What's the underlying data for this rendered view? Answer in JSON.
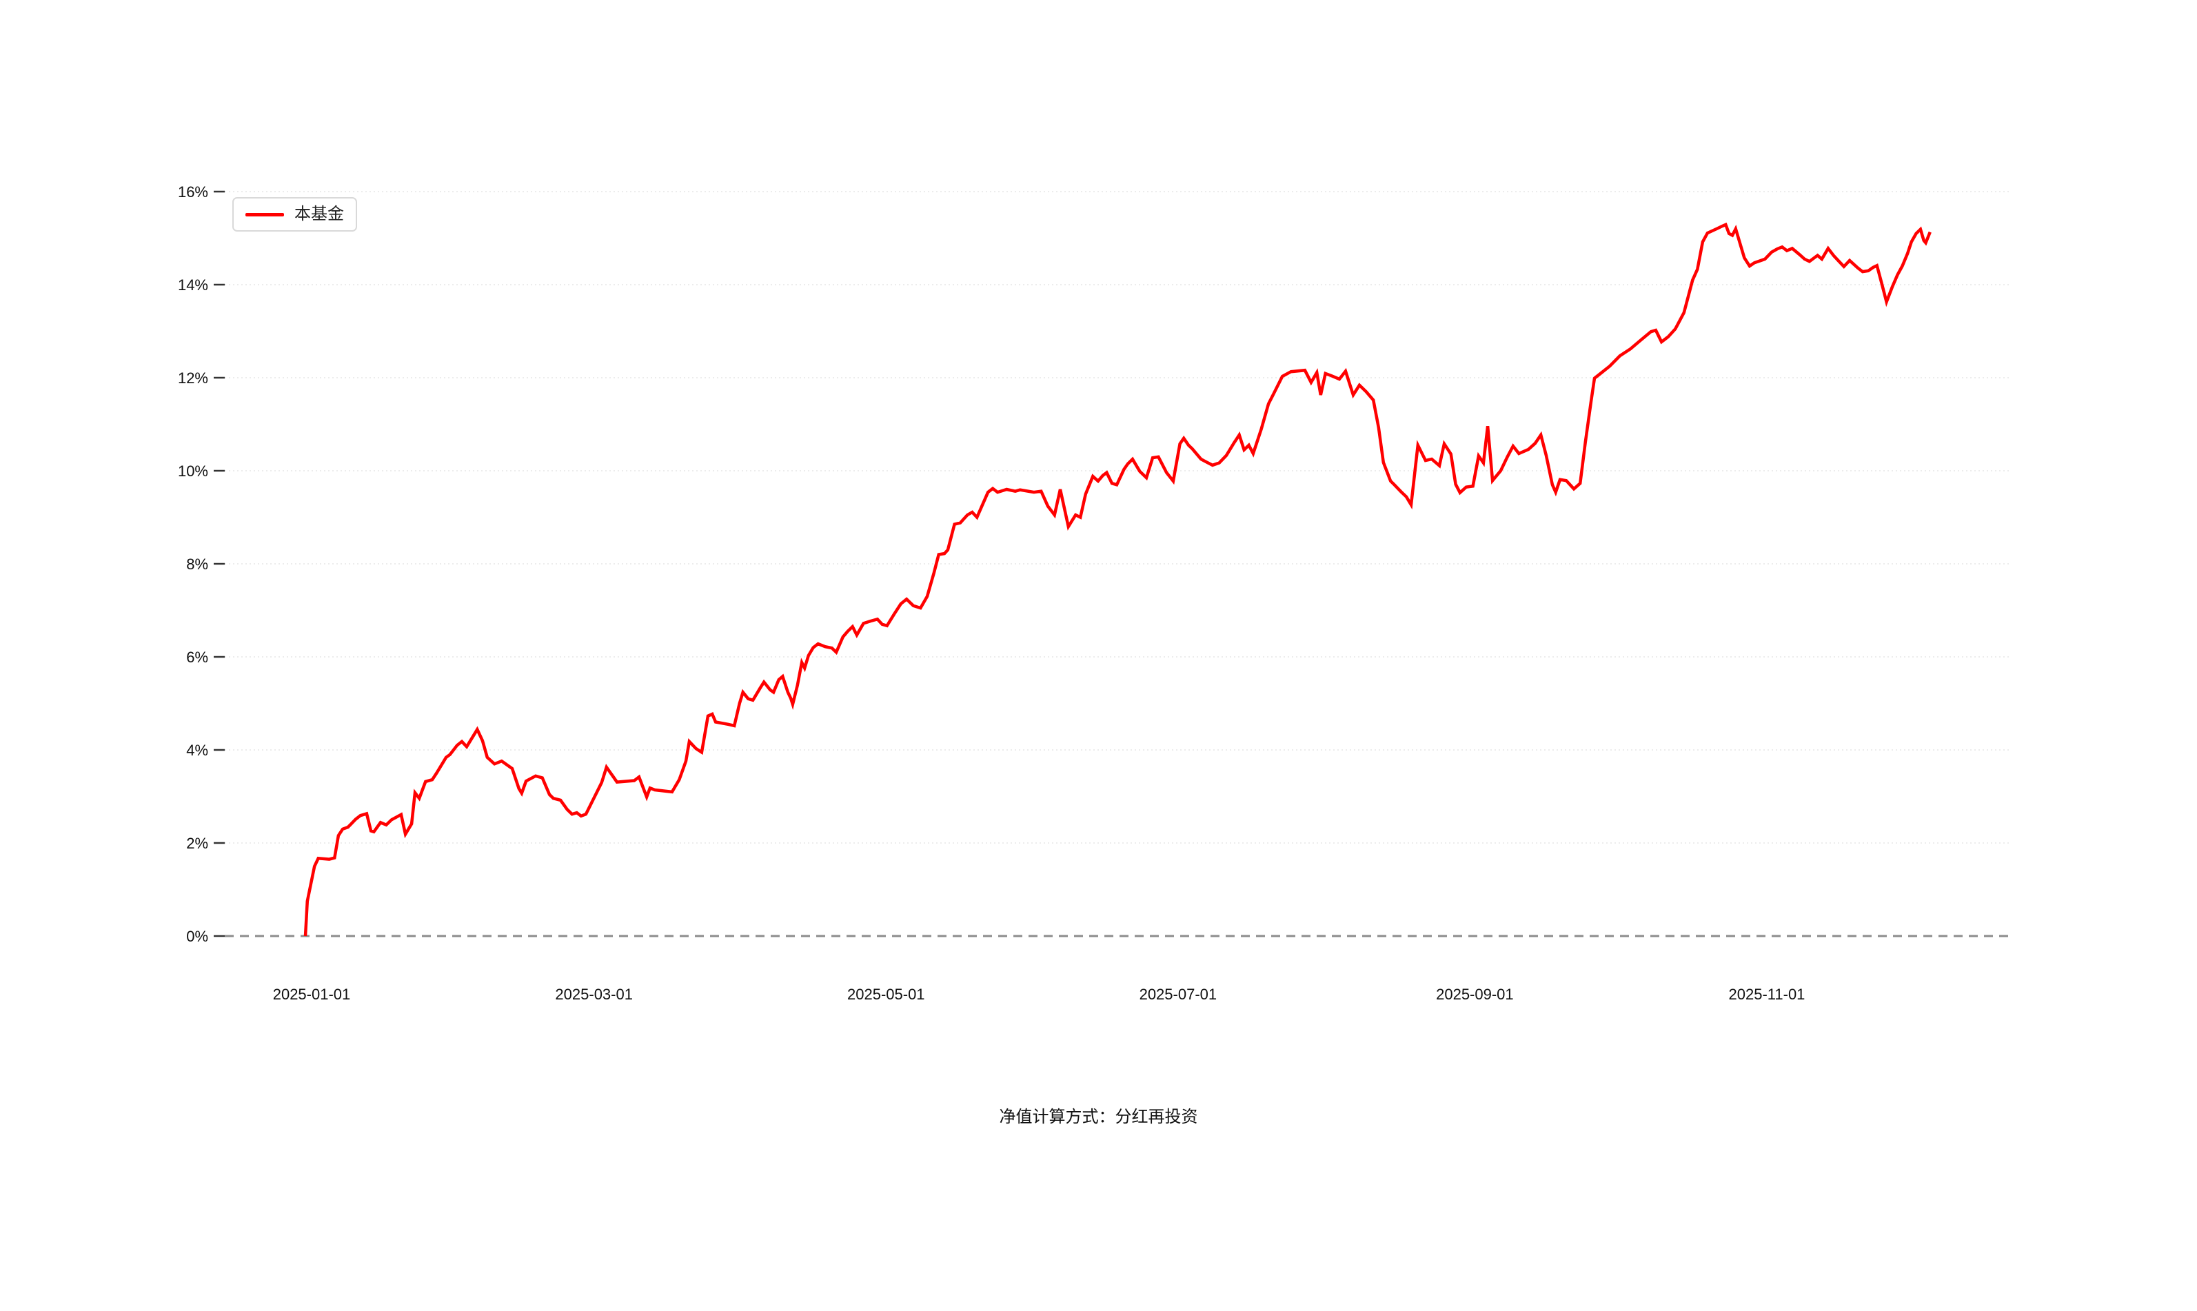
{
  "page": {
    "background": "#ffffff"
  },
  "caption": {
    "text": "净值计算方式：分红再投资"
  },
  "chart_data": {
    "type": "line",
    "title": "",
    "xlabel": "",
    "ylabel": "",
    "grid": true,
    "legend_position": "top-left",
    "zero_line_style": "dashed",
    "colors": {
      "line": "#ff0000",
      "grid": "#e5e5e5",
      "zero_line": "#8c8c8c",
      "axis_text": "#111111"
    },
    "x_axis": {
      "epoch": "2025-01-01",
      "tick_labels": [
        "2025-01-01",
        "2025-03-01",
        "2025-05-01",
        "2025-07-01",
        "2025-09-01",
        "2025-11-01"
      ],
      "tick_day_offsets": [
        0,
        59,
        120,
        181,
        243,
        304
      ]
    },
    "y_axis": {
      "unit": "%",
      "range": [
        0,
        16
      ],
      "tick_values": [
        0,
        2,
        4,
        6,
        8,
        10,
        12,
        14,
        16
      ],
      "tick_labels": [
        "0%",
        "2%",
        "4%",
        "6%",
        "8%",
        "10%",
        "12%",
        "14%",
        "16%"
      ]
    },
    "series": [
      {
        "name": "本基金",
        "color": "#ff0000",
        "points": [
          [
            -1.3,
            0.0
          ],
          [
            -0.9,
            0.75
          ],
          [
            0.6,
            1.5
          ],
          [
            1.4,
            1.67
          ],
          [
            3.7,
            1.65
          ],
          [
            4.8,
            1.68
          ],
          [
            5.6,
            2.16
          ],
          [
            6.5,
            2.3
          ],
          [
            7.6,
            2.34
          ],
          [
            9.2,
            2.51
          ],
          [
            10.2,
            2.59
          ],
          [
            11.5,
            2.63
          ],
          [
            12.4,
            2.26
          ],
          [
            13.0,
            2.24
          ],
          [
            14.4,
            2.44
          ],
          [
            15.6,
            2.39
          ],
          [
            16.7,
            2.5
          ],
          [
            18.7,
            2.61
          ],
          [
            19.6,
            2.19
          ],
          [
            20.9,
            2.41
          ],
          [
            21.6,
            3.08
          ],
          [
            22.5,
            2.96
          ],
          [
            23.8,
            3.32
          ],
          [
            25.2,
            3.36
          ],
          [
            26.1,
            3.5
          ],
          [
            28.1,
            3.84
          ],
          [
            28.9,
            3.9
          ],
          [
            30.4,
            4.1
          ],
          [
            31.4,
            4.18
          ],
          [
            32.4,
            4.07
          ],
          [
            34.6,
            4.44
          ],
          [
            35.7,
            4.2
          ],
          [
            36.7,
            3.84
          ],
          [
            38.2,
            3.7
          ],
          [
            39.7,
            3.76
          ],
          [
            41.9,
            3.6
          ],
          [
            43.3,
            3.17
          ],
          [
            43.9,
            3.07
          ],
          [
            44.8,
            3.33
          ],
          [
            46.8,
            3.44
          ],
          [
            48.2,
            3.4
          ],
          [
            49.7,
            3.04
          ],
          [
            50.5,
            2.96
          ],
          [
            52.0,
            2.92
          ],
          [
            53.4,
            2.72
          ],
          [
            54.4,
            2.62
          ],
          [
            55.4,
            2.65
          ],
          [
            56.3,
            2.58
          ],
          [
            57.3,
            2.62
          ],
          [
            60.6,
            3.3
          ],
          [
            61.6,
            3.63
          ],
          [
            63.8,
            3.31
          ],
          [
            67.4,
            3.34
          ],
          [
            68.4,
            3.42
          ],
          [
            70.0,
            2.99
          ],
          [
            70.7,
            3.18
          ],
          [
            71.7,
            3.14
          ],
          [
            75.3,
            3.1
          ],
          [
            76.8,
            3.36
          ],
          [
            78.2,
            3.76
          ],
          [
            78.9,
            4.18
          ],
          [
            80.3,
            4.03
          ],
          [
            81.5,
            3.95
          ],
          [
            82.8,
            4.73
          ],
          [
            83.7,
            4.77
          ],
          [
            84.4,
            4.6
          ],
          [
            87.1,
            4.55
          ],
          [
            88.3,
            4.52
          ],
          [
            89.4,
            5.0
          ],
          [
            90.1,
            5.24
          ],
          [
            91.2,
            5.1
          ],
          [
            92.2,
            5.07
          ],
          [
            93.7,
            5.33
          ],
          [
            94.5,
            5.46
          ],
          [
            95.8,
            5.29
          ],
          [
            96.5,
            5.24
          ],
          [
            97.6,
            5.51
          ],
          [
            98.4,
            5.58
          ],
          [
            99.5,
            5.24
          ],
          [
            100.1,
            5.11
          ],
          [
            100.5,
            4.98
          ],
          [
            101.5,
            5.39
          ],
          [
            102.4,
            5.88
          ],
          [
            103.0,
            5.76
          ],
          [
            103.8,
            6.03
          ],
          [
            104.8,
            6.2
          ],
          [
            105.8,
            6.28
          ],
          [
            107.3,
            6.22
          ],
          [
            108.7,
            6.19
          ],
          [
            109.6,
            6.1
          ],
          [
            111.0,
            6.43
          ],
          [
            112.0,
            6.55
          ],
          [
            113.0,
            6.65
          ],
          [
            113.9,
            6.47
          ],
          [
            115.3,
            6.72
          ],
          [
            116.8,
            6.77
          ],
          [
            118.2,
            6.81
          ],
          [
            119.2,
            6.7
          ],
          [
            120.2,
            6.67
          ],
          [
            121.7,
            6.92
          ],
          [
            123.1,
            7.14
          ],
          [
            124.3,
            7.24
          ],
          [
            125.7,
            7.1
          ],
          [
            127.2,
            7.05
          ],
          [
            128.6,
            7.3
          ],
          [
            130.0,
            7.8
          ],
          [
            131.0,
            8.2
          ],
          [
            132.2,
            8.22
          ],
          [
            132.9,
            8.3
          ],
          [
            134.3,
            8.85
          ],
          [
            135.5,
            8.88
          ],
          [
            137.0,
            9.05
          ],
          [
            138.0,
            9.11
          ],
          [
            139.0,
            9.0
          ],
          [
            141.3,
            9.54
          ],
          [
            142.3,
            9.62
          ],
          [
            143.3,
            9.54
          ],
          [
            145.2,
            9.6
          ],
          [
            147.0,
            9.56
          ],
          [
            148.0,
            9.59
          ],
          [
            150.9,
            9.54
          ],
          [
            152.4,
            9.56
          ],
          [
            153.8,
            9.24
          ],
          [
            155.2,
            9.05
          ],
          [
            156.4,
            9.6
          ],
          [
            158.1,
            8.8
          ],
          [
            159.6,
            9.05
          ],
          [
            160.6,
            9.0
          ],
          [
            161.7,
            9.5
          ],
          [
            163.2,
            9.88
          ],
          [
            164.3,
            9.78
          ],
          [
            165.3,
            9.9
          ],
          [
            166.1,
            9.96
          ],
          [
            167.2,
            9.73
          ],
          [
            168.2,
            9.7
          ],
          [
            169.7,
            10.03
          ],
          [
            170.5,
            10.15
          ],
          [
            171.5,
            10.25
          ],
          [
            173.0,
            9.99
          ],
          [
            174.4,
            9.85
          ],
          [
            175.7,
            10.28
          ],
          [
            176.9,
            10.3
          ],
          [
            178.6,
            9.96
          ],
          [
            180.0,
            9.78
          ],
          [
            181.4,
            10.58
          ],
          [
            182.2,
            10.7
          ],
          [
            183.2,
            10.55
          ],
          [
            184.0,
            10.47
          ],
          [
            185.8,
            10.25
          ],
          [
            186.9,
            10.19
          ],
          [
            188.2,
            10.12
          ],
          [
            189.6,
            10.17
          ],
          [
            191.1,
            10.33
          ],
          [
            192.7,
            10.6
          ],
          [
            193.8,
            10.77
          ],
          [
            194.8,
            10.45
          ],
          [
            195.8,
            10.55
          ],
          [
            196.7,
            10.37
          ],
          [
            198.4,
            10.9
          ],
          [
            199.9,
            11.44
          ],
          [
            201.0,
            11.66
          ],
          [
            202.8,
            12.03
          ],
          [
            204.6,
            12.13
          ],
          [
            207.5,
            12.16
          ],
          [
            208.8,
            11.9
          ],
          [
            210.0,
            12.11
          ],
          [
            210.8,
            11.63
          ],
          [
            211.8,
            12.09
          ],
          [
            213.1,
            12.04
          ],
          [
            214.7,
            11.97
          ],
          [
            216.0,
            12.14
          ],
          [
            217.6,
            11.63
          ],
          [
            218.9,
            11.84
          ],
          [
            220.3,
            11.7
          ],
          [
            221.8,
            11.52
          ],
          [
            222.9,
            10.93
          ],
          [
            223.9,
            10.18
          ],
          [
            225.4,
            9.78
          ],
          [
            226.2,
            9.7
          ],
          [
            227.7,
            9.54
          ],
          [
            228.7,
            9.44
          ],
          [
            229.7,
            9.27
          ],
          [
            231.1,
            10.55
          ],
          [
            232.7,
            10.22
          ],
          [
            234.0,
            10.25
          ],
          [
            235.6,
            10.11
          ],
          [
            236.6,
            10.58
          ],
          [
            238.0,
            10.36
          ],
          [
            239.0,
            9.71
          ],
          [
            239.9,
            9.53
          ],
          [
            241.2,
            9.65
          ],
          [
            242.6,
            9.67
          ],
          [
            243.8,
            10.32
          ],
          [
            244.8,
            10.17
          ],
          [
            245.7,
            10.96
          ],
          [
            246.7,
            9.79
          ],
          [
            248.4,
            10.0
          ],
          [
            249.8,
            10.3
          ],
          [
            251.0,
            10.53
          ],
          [
            252.2,
            10.37
          ],
          [
            254.2,
            10.46
          ],
          [
            255.6,
            10.59
          ],
          [
            256.8,
            10.77
          ],
          [
            257.9,
            10.33
          ],
          [
            259.2,
            9.7
          ],
          [
            259.9,
            9.54
          ],
          [
            260.8,
            9.81
          ],
          [
            262.1,
            9.79
          ],
          [
            263.7,
            9.61
          ],
          [
            265.0,
            9.73
          ],
          [
            266.1,
            10.62
          ],
          [
            267.3,
            11.5
          ],
          [
            268.0,
            11.99
          ],
          [
            269.0,
            12.07
          ],
          [
            271.2,
            12.25
          ],
          [
            273.3,
            12.47
          ],
          [
            275.5,
            12.62
          ],
          [
            277.7,
            12.81
          ],
          [
            279.8,
            12.99
          ],
          [
            280.8,
            13.02
          ],
          [
            282.0,
            12.77
          ],
          [
            283.4,
            12.88
          ],
          [
            284.9,
            13.05
          ],
          [
            286.7,
            13.4
          ],
          [
            288.5,
            14.1
          ],
          [
            289.5,
            14.33
          ],
          [
            290.6,
            14.92
          ],
          [
            291.6,
            15.11
          ],
          [
            293.5,
            15.2
          ],
          [
            294.7,
            15.26
          ],
          [
            295.4,
            15.29
          ],
          [
            296.1,
            15.1
          ],
          [
            296.8,
            15.06
          ],
          [
            297.5,
            15.2
          ],
          [
            299.3,
            14.58
          ],
          [
            300.4,
            14.4
          ],
          [
            301.4,
            14.47
          ],
          [
            303.6,
            14.55
          ],
          [
            305.0,
            14.7
          ],
          [
            306.2,
            14.77
          ],
          [
            307.2,
            14.81
          ],
          [
            308.2,
            14.73
          ],
          [
            309.3,
            14.78
          ],
          [
            310.8,
            14.65
          ],
          [
            311.9,
            14.55
          ],
          [
            312.9,
            14.5
          ],
          [
            314.6,
            14.63
          ],
          [
            315.5,
            14.55
          ],
          [
            316.8,
            14.78
          ],
          [
            318.0,
            14.62
          ],
          [
            319.1,
            14.5
          ],
          [
            320.1,
            14.39
          ],
          [
            321.3,
            14.52
          ],
          [
            323.0,
            14.36
          ],
          [
            324.0,
            14.28
          ],
          [
            325.2,
            14.3
          ],
          [
            326.2,
            14.37
          ],
          [
            327.0,
            14.41
          ],
          [
            328.0,
            14.03
          ],
          [
            329.0,
            13.63
          ],
          [
            330.2,
            13.95
          ],
          [
            331.3,
            14.21
          ],
          [
            332.3,
            14.4
          ],
          [
            333.4,
            14.67
          ],
          [
            334.2,
            14.92
          ],
          [
            335.2,
            15.1
          ],
          [
            336.1,
            15.19
          ],
          [
            336.8,
            14.95
          ],
          [
            337.2,
            14.9
          ],
          [
            338.1,
            15.13
          ]
        ]
      }
    ]
  }
}
